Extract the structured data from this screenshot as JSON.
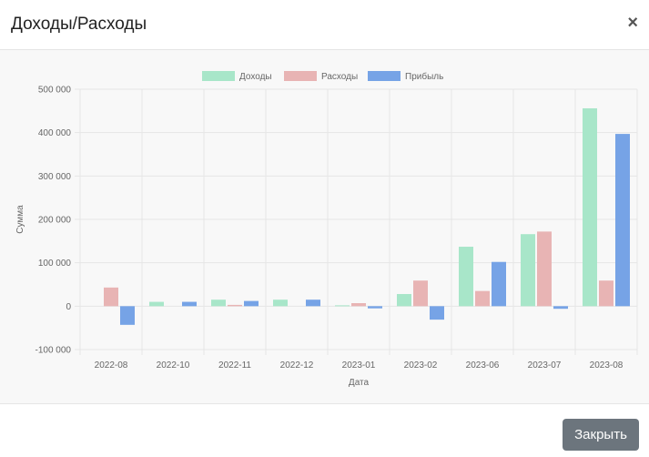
{
  "modal": {
    "title": "Доходы/Расходы",
    "close_icon": "×",
    "close_button_label": "Закрыть"
  },
  "colors": {
    "income": "#a8e6c9",
    "expense": "#e8b4b4",
    "profit": "#76a3e6",
    "grid": "#e6e6e6",
    "axis_text": "#666666",
    "button_bg": "#6c757d"
  },
  "chart_data": {
    "type": "bar",
    "xlabel": "Дата",
    "ylabel": "Сумма",
    "legend_position": "top",
    "grid": true,
    "ylim": [
      -100000,
      500000
    ],
    "y_ticks": [
      "-100 000",
      "0",
      "100 000",
      "200 000",
      "300 000",
      "400 000",
      "500 000"
    ],
    "categories": [
      "2022-08",
      "2022-10",
      "2022-11",
      "2022-12",
      "2023-01",
      "2023-02",
      "2023-06",
      "2023-07",
      "2023-08"
    ],
    "series": [
      {
        "name": "Доходы",
        "values": [
          0,
          10000,
          15000,
          15000,
          2000,
          28000,
          137000,
          166000,
          456000
        ]
      },
      {
        "name": "Расходы",
        "values": [
          43000,
          0,
          3000,
          0,
          7000,
          59000,
          35000,
          172000,
          59000
        ]
      },
      {
        "name": "Прибыль",
        "values": [
          -43000,
          10000,
          12000,
          15000,
          -5000,
          -31000,
          102000,
          -6000,
          397000
        ]
      }
    ]
  }
}
